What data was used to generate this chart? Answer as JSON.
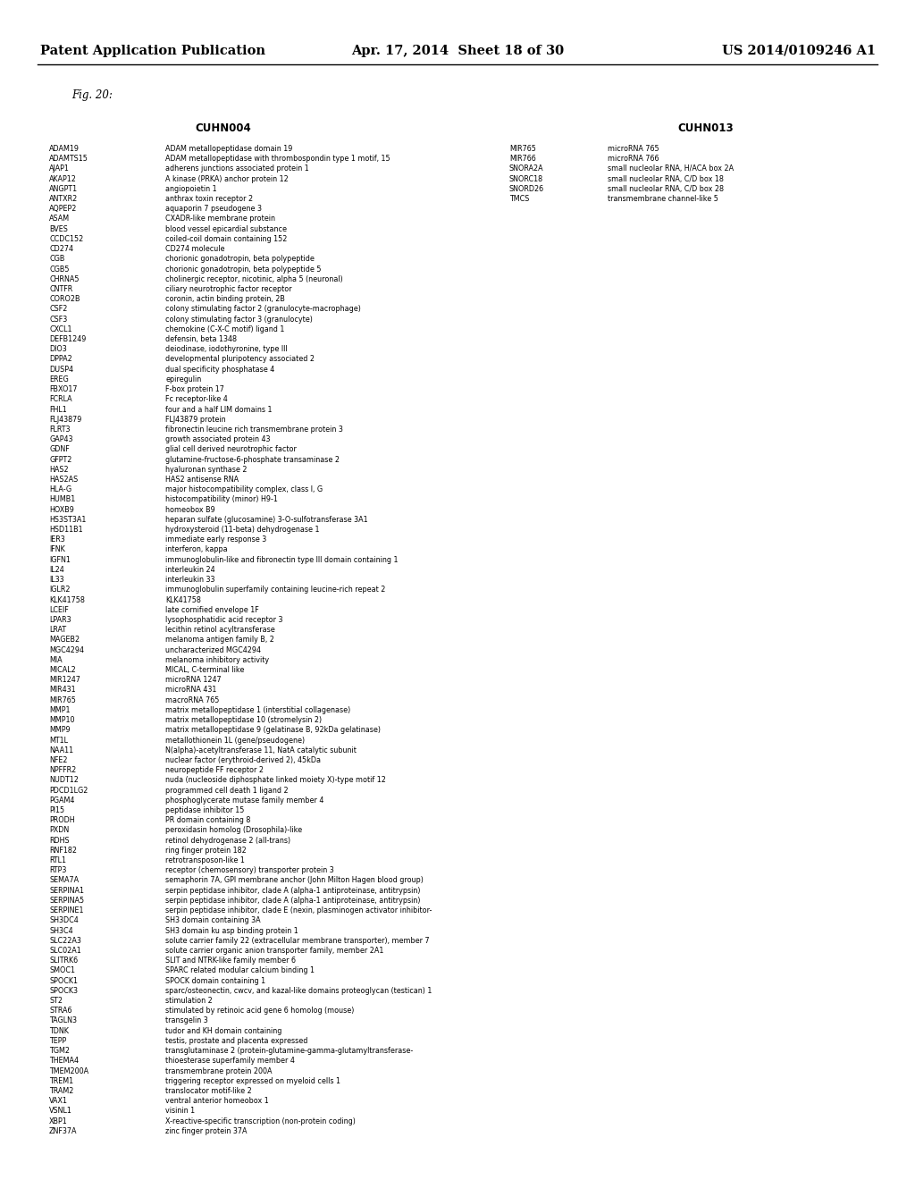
{
  "header_left": "Patent Application Publication",
  "header_mid": "Apr. 17, 2014  Sheet 18 of 30",
  "header_right": "US 2014/0109246 A1",
  "fig_label": "Fig. 20:",
  "col1_title": "CUHN004",
  "col2_title": "CUHN013",
  "col1_entries": [
    [
      "ADAM19",
      "ADAM metallopeptidase domain 19"
    ],
    [
      "ADAMTS15",
      "ADAM metallopeptidase with thrombospondin type 1 motif, 15"
    ],
    [
      "AJAP1",
      "adherens junctions associated protein 1"
    ],
    [
      "AKAP12",
      "A kinase (PRKA) anchor protein 12"
    ],
    [
      "ANGPT1",
      "angiopoietin 1"
    ],
    [
      "ANTXR2",
      "anthrax toxin receptor 2"
    ],
    [
      "AQPEP2",
      "aquaporin 7 pseudogene 3"
    ],
    [
      "ASAM",
      "CXADR-like membrane protein"
    ],
    [
      "BVES",
      "blood vessel epicardial substance"
    ],
    [
      "CCDC152",
      "coiled-coil domain containing 152"
    ],
    [
      "CD274",
      "CD274 molecule"
    ],
    [
      "CGB",
      "chorionic gonadotropin, beta polypeptide"
    ],
    [
      "CGB5",
      "chorionic gonadotropin, beta polypeptide 5"
    ],
    [
      "CHRNA5",
      "cholinergic receptor, nicotinic, alpha 5 (neuronal)"
    ],
    [
      "CNTFR",
      "ciliary neurotrophic factor receptor"
    ],
    [
      "CORO2B",
      "coronin, actin binding protein, 2B"
    ],
    [
      "CSF2",
      "colony stimulating factor 2 (granulocyte-macrophage)"
    ],
    [
      "CSF3",
      "colony stimulating factor 3 (granulocyte)"
    ],
    [
      "CXCL1",
      "chemokine (C-X-C motif) ligand 1"
    ],
    [
      "DEFB1249",
      "defensin, beta 1348"
    ],
    [
      "DIO3",
      "deiodinase, iodothyronine, type III"
    ],
    [
      "DPPA2",
      "developmental pluripotency associated 2"
    ],
    [
      "DUSP4",
      "dual specificity phosphatase 4"
    ],
    [
      "EREG",
      "epiregulin"
    ],
    [
      "FBXO17",
      "F-box protein 17"
    ],
    [
      "FCRLA",
      "Fc receptor-like 4"
    ],
    [
      "FHL1",
      "four and a half LIM domains 1"
    ],
    [
      "FLJ43879",
      "FLJ43879 protein"
    ],
    [
      "FLRT3",
      "fibronectin leucine rich transmembrane protein 3"
    ],
    [
      "GAP43",
      "growth associated protein 43"
    ],
    [
      "GDNF",
      "glial cell derived neurotrophic factor"
    ],
    [
      "GFPT2",
      "glutamine-fructose-6-phosphate transaminase 2"
    ],
    [
      "HAS2",
      "hyaluronan synthase 2"
    ],
    [
      "HAS2AS",
      "HAS2 antisense RNA"
    ],
    [
      "HLA-G",
      "major histocompatibility complex, class I, G"
    ],
    [
      "HUMB1",
      "histocompatibility (minor) H9-1"
    ],
    [
      "HOXB9",
      "homeobox B9"
    ],
    [
      "HS3ST3A1",
      "heparan sulfate (glucosamine) 3-O-sulfotransferase 3A1"
    ],
    [
      "HSD11B1",
      "hydroxysteroid (11-beta) dehydrogenase 1"
    ],
    [
      "IER3",
      "immediate early response 3"
    ],
    [
      "IFNK",
      "interferon, kappa"
    ],
    [
      "IGFN1",
      "immunoglobulin-like and fibronectin type III domain containing 1"
    ],
    [
      "IL24",
      "interleukin 24"
    ],
    [
      "IL33",
      "interleukin 33"
    ],
    [
      "IGLR2",
      "immunoglobulin superfamily containing leucine-rich repeat 2"
    ],
    [
      "KLK41758",
      "KLK41758"
    ],
    [
      "LCEIF",
      "late cornified envelope 1F"
    ],
    [
      "LPAR3",
      "lysophosphatidic acid receptor 3"
    ],
    [
      "LRAT",
      "lecithin retinol acyltransferase"
    ],
    [
      "MAGEB2",
      "melanoma antigen family B, 2"
    ],
    [
      "MGC4294",
      "uncharacterized MGC4294"
    ],
    [
      "MIA",
      "melanoma inhibitory activity"
    ],
    [
      "MICAL2",
      "MICAL, C-terminal like"
    ],
    [
      "MIR1247",
      "microRNA 1247"
    ],
    [
      "MIR431",
      "microRNA 431"
    ],
    [
      "MIR765",
      "macroRNA 765"
    ],
    [
      "MMP1",
      "matrix metallopeptidase 1 (interstitial collagenase)"
    ],
    [
      "MMP10",
      "matrix metallopeptidase 10 (stromelysin 2)"
    ],
    [
      "MMP9",
      "matrix metallopeptidase 9 (gelatinase B, 92kDa gelatinase)"
    ],
    [
      "MT1L",
      "metallothionein 1L (gene/pseudogene)"
    ],
    [
      "NAA11",
      "N(alpha)-acetyltransferase 11, NatA catalytic subunit"
    ],
    [
      "NFE2",
      "nuclear factor (erythroid-derived 2), 45kDa"
    ],
    [
      "NPFFR2",
      "neuropeptide FF receptor 2"
    ],
    [
      "NUDT12",
      "nuda (nucleoside diphosphate linked moiety X)-type motif 12"
    ],
    [
      "PDCD1LG2",
      "programmed cell death 1 ligand 2"
    ],
    [
      "PGAM4",
      "phosphoglycerate mutase family member 4"
    ],
    [
      "PI15",
      "peptidase inhibitor 15"
    ],
    [
      "PRODH",
      "PR domain containing 8"
    ],
    [
      "PXDN",
      "peroxidasin homolog (Drosophila)-like"
    ],
    [
      "RDHS",
      "retinol dehydrogenase 2 (all-trans)"
    ],
    [
      "RNF182",
      "ring finger protein 182"
    ],
    [
      "RTL1",
      "retrotransposon-like 1"
    ],
    [
      "RTP3",
      "receptor (chemosensory) transporter protein 3"
    ],
    [
      "SEMA7A",
      "semaphorin 7A, GPI membrane anchor (John Milton Hagen blood group)"
    ],
    [
      "SERPINA1",
      "serpin peptidase inhibitor, clade A (alpha-1 antiproteinase, antitrypsin)"
    ],
    [
      "SERPINA5",
      "serpin peptidase inhibitor, clade A (alpha-1 antiproteinase, antitrypsin)"
    ],
    [
      "SERPINE1",
      "serpin peptidase inhibitor, clade E (nexin, plasminogen activator inhibitor-"
    ],
    [
      "SH3DC4",
      "SH3 domain containing 3A"
    ],
    [
      "SH3C4",
      "SH3 domain ku asp binding protein 1"
    ],
    [
      "SLC22A3",
      "solute carrier family 22 (extracellular membrane transporter), member 7"
    ],
    [
      "SLC02A1",
      "solute carrier organic anion transporter family, member 2A1"
    ],
    [
      "SLITRK6",
      "SLIT and NTRK-like family member 6"
    ],
    [
      "SMOC1",
      "SPARC related modular calcium binding 1"
    ],
    [
      "SPOCK1",
      "SPOCK domain containing 1"
    ],
    [
      "SPOCK3",
      "sparc/osteonectin, cwcv, and kazal-like domains proteoglycan (testican) 1"
    ],
    [
      "ST2",
      "stimulation 2"
    ],
    [
      "STRA6",
      "stimulated by retinoic acid gene 6 homolog (mouse)"
    ],
    [
      "TAGLN3",
      "transgelin 3"
    ],
    [
      "TDNK",
      "tudor and KH domain containing"
    ],
    [
      "TEPP",
      "testis, prostate and placenta expressed"
    ],
    [
      "TGM2",
      "transglutaminase 2 (protein-glutamine-gamma-glutamyltransferase-"
    ],
    [
      "THEMA4",
      "thioesterase superfamily member 4"
    ],
    [
      "TMEM200A",
      "transmembrane protein 200A"
    ],
    [
      "TREM1",
      "triggering receptor expressed on myeloid cells 1"
    ],
    [
      "TRAM2",
      "translocator motif-like 2"
    ],
    [
      "VAX1",
      "ventral anterior homeobox 1"
    ],
    [
      "VSNL1",
      "visinin 1"
    ],
    [
      "XBP1",
      "X-reactive-specific transcription (non-protein coding)"
    ],
    [
      "ZNF37A",
      "zinc finger protein 37A"
    ]
  ],
  "col2_entries": [
    [
      "MIR765",
      "microRNA 765"
    ],
    [
      "MIR766",
      "microRNA 766"
    ],
    [
      "SNORA2A",
      "small nucleolar RNA, H/ACA box 2A"
    ],
    [
      "SNORC18",
      "small nucleolar RNA, C/D box 18"
    ],
    [
      "SNORD26",
      "small nucleolar RNA, C/D box 28"
    ],
    [
      "TMCS",
      "transmembrane channel-like 5"
    ]
  ],
  "background_color": "#ffffff",
  "text_color": "#000000",
  "header_fontsize": 10.5,
  "entry_fontsize": 5.8,
  "col_title_fontsize": 8.5,
  "fig_label_fontsize": 8.5
}
